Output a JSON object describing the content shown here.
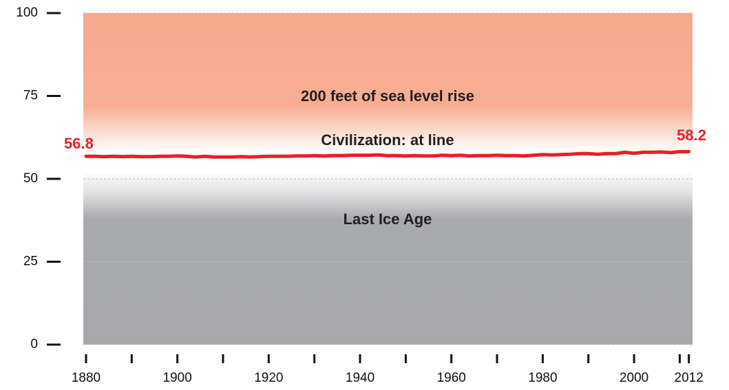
{
  "chart_data": {
    "type": "line",
    "x": [
      1880,
      1882,
      1884,
      1886,
      1888,
      1890,
      1892,
      1894,
      1896,
      1898,
      1900,
      1902,
      1904,
      1906,
      1908,
      1910,
      1912,
      1914,
      1916,
      1918,
      1920,
      1922,
      1924,
      1926,
      1928,
      1930,
      1932,
      1934,
      1936,
      1938,
      1940,
      1942,
      1944,
      1946,
      1948,
      1950,
      1952,
      1954,
      1956,
      1958,
      1960,
      1962,
      1964,
      1966,
      1968,
      1970,
      1972,
      1974,
      1976,
      1978,
      1980,
      1982,
      1984,
      1986,
      1988,
      1990,
      1992,
      1994,
      1996,
      1998,
      2000,
      2002,
      2004,
      2006,
      2008,
      2010,
      2012
    ],
    "series": [
      {
        "color": "#e8202a",
        "values": [
          56.8,
          56.8,
          56.7,
          56.8,
          56.7,
          56.8,
          56.7,
          56.7,
          56.8,
          56.8,
          56.9,
          56.8,
          56.6,
          56.8,
          56.6,
          56.6,
          56.6,
          56.7,
          56.6,
          56.7,
          56.8,
          56.8,
          56.8,
          56.9,
          56.9,
          57.0,
          56.9,
          57.0,
          57.0,
          57.1,
          57.1,
          57.1,
          57.2,
          57.0,
          57.0,
          56.9,
          57.0,
          56.9,
          56.9,
          57.1,
          57.0,
          57.1,
          56.9,
          57.0,
          57.0,
          57.1,
          57.0,
          57.0,
          56.9,
          57.1,
          57.3,
          57.2,
          57.3,
          57.4,
          57.6,
          57.6,
          57.4,
          57.6,
          57.6,
          58.0,
          57.7,
          58.0,
          58.0,
          58.1,
          57.9,
          58.2,
          58.2
        ]
      }
    ],
    "xlim": [
      1879.4,
      2012.8
    ],
    "ylim": [
      0,
      100
    ],
    "yticks": [
      0,
      25,
      50,
      75,
      100
    ],
    "xticks": [
      1880,
      1900,
      1920,
      1940,
      1960,
      1980,
      2000,
      2012
    ],
    "xminor_ticks": [
      1890,
      1910,
      1930,
      1950,
      1970,
      1990,
      2010
    ],
    "grid": true,
    "annotations": [
      "200 feet of sea level rise",
      "Civilization: at line",
      "Last Ice Age"
    ]
  }
}
